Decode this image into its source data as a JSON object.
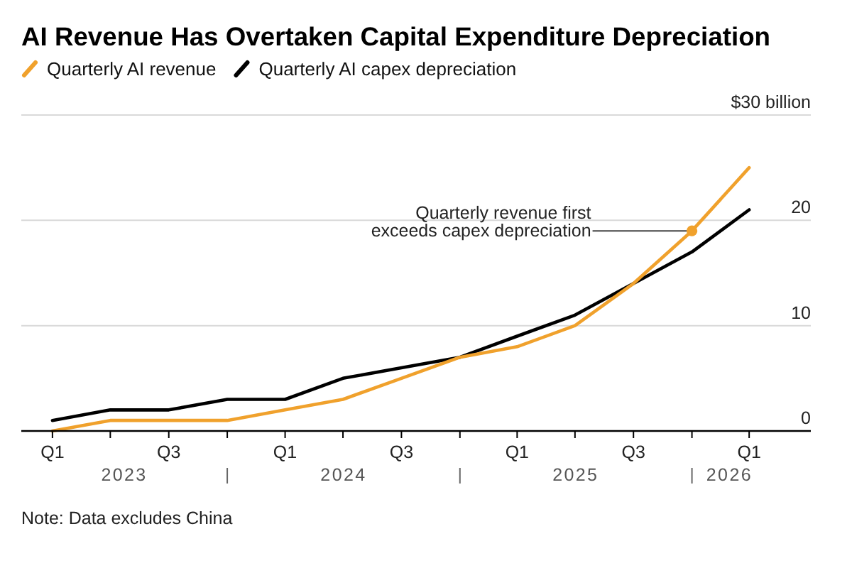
{
  "chart_data": {
    "type": "line",
    "title": "AI Revenue Has Overtaken Capital Expenditure Depreciation",
    "x": [
      "2023-03-31",
      "2023-06-30",
      "2023-09-30",
      "2023-12-31",
      "2024-03-31",
      "2024-06-30",
      "2024-09-30",
      "2024-12-31",
      "2025-03-31",
      "2025-06-30",
      "2025-09-30",
      "2025-12-31",
      "2026-03-31"
    ],
    "series": [
      {
        "name": "Quarterly AI revenue",
        "color": "#f0a12c",
        "values": [
          0,
          1,
          1,
          1,
          2,
          3,
          5,
          7,
          8,
          10,
          14,
          19,
          25
        ]
      },
      {
        "name": "Quarterly AI capex depreciation",
        "color": "#000000",
        "values": [
          1,
          2,
          2,
          3,
          3,
          5,
          6,
          7,
          9,
          11,
          14,
          17,
          21
        ]
      }
    ],
    "xlim": [
      "2023-02-10",
      "2026-07-06"
    ],
    "xticks": [
      {
        "value": "2023-07-22",
        "label": "2023"
      },
      {
        "value": "2024-07-01",
        "label": "2024"
      },
      {
        "value": "2025-07-01",
        "label": "2025"
      },
      {
        "value": "2026-02-28",
        "label": "2026"
      }
    ],
    "x2lim": [
      "2023-02-10",
      "2026-07-06"
    ],
    "x2ticks": [
      {
        "value": "2023-03-31",
        "label": "Q1"
      },
      {
        "value": "2023-06-30",
        "label": null
      },
      {
        "value": "2023-09-30",
        "label": "Q3"
      },
      {
        "value": "2023-12-31",
        "label": null
      },
      {
        "value": "2024-03-31",
        "label": "Q1"
      },
      {
        "value": "2024-06-30",
        "label": null
      },
      {
        "value": "2024-09-30",
        "label": "Q3"
      },
      {
        "value": "2024-12-31",
        "label": null
      },
      {
        "value": "2025-03-31",
        "label": "Q1"
      },
      {
        "value": "2025-06-30",
        "label": null
      },
      {
        "value": "2025-09-30",
        "label": "Q3"
      },
      {
        "value": "2025-12-31",
        "label": null
      },
      {
        "value": "2026-03-31",
        "label": "Q1"
      }
    ],
    "ylim": [
      0,
      30
    ],
    "yticks": [
      0,
      10,
      20,
      {
        "value": 30,
        "label": "$30 billion"
      }
    ],
    "grid": "y",
    "legend": "top left",
    "annotations": [
      {
        "text": "Quarterly revenue first\nexceeds capex depreciation",
        "x": "2025-12-31",
        "y": 19
      },
      "Note: Data excludes China"
    ]
  }
}
